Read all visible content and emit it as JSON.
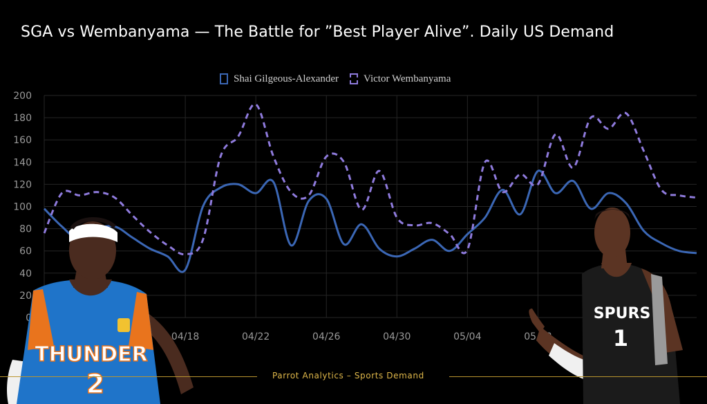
{
  "title": "SGA vs Wembanyama — The Battle for ”Best Player Alive”.   Daily US Demand",
  "footer": "Parrot Analytics – Sports Demand",
  "colors": {
    "sga": "#3b67b5",
    "wemby": "#8f7bdd",
    "background": "#000000",
    "footer_accent": "#b9952f"
  },
  "chart_data": {
    "type": "line",
    "title": "SGA vs Wembanyama — The Battle for ”Best Player Alive”.   Daily US Demand",
    "xlabel": "",
    "ylabel": "",
    "ylim": [
      0,
      200
    ],
    "yticks": [
      "200",
      "180",
      "160",
      "140",
      "120",
      "100",
      "80",
      "60",
      "40",
      "20",
      "0"
    ],
    "xticks": [
      "04/18",
      "04/22",
      "04/26",
      "04/30",
      "05/04",
      "05/08"
    ],
    "grid": true,
    "legend_position": "top-center",
    "x": [
      "04/10",
      "04/11",
      "04/12",
      "04/13",
      "04/14",
      "04/15",
      "04/16",
      "04/17",
      "04/18",
      "04/19",
      "04/20",
      "04/21",
      "04/22",
      "04/23",
      "04/24",
      "04/25",
      "04/26",
      "04/27",
      "04/28",
      "04/29",
      "04/30",
      "05/01",
      "05/02",
      "05/03",
      "05/04",
      "05/05",
      "05/06",
      "05/07",
      "05/08",
      "05/09",
      "05/10",
      "05/11",
      "05/12",
      "05/13",
      "05/14",
      "05/15",
      "05/16",
      "05/17"
    ],
    "series": [
      {
        "name": "Shai Gilgeous-Alexander",
        "style": "solid",
        "values": [
          98,
          82,
          70,
          80,
          82,
          72,
          62,
          55,
          43,
          100,
          117,
          120,
          112,
          122,
          65,
          105,
          107,
          66,
          84,
          62,
          55,
          62,
          70,
          60,
          75,
          90,
          115,
          93,
          132,
          112,
          123,
          98,
          112,
          103,
          78,
          67,
          60,
          58
        ]
      },
      {
        "name": "Victor Wembanyama",
        "style": "dashed",
        "values": [
          76,
          112,
          110,
          113,
          108,
          92,
          77,
          65,
          57,
          70,
          145,
          163,
          192,
          145,
          113,
          110,
          145,
          140,
          97,
          132,
          90,
          83,
          85,
          75,
          61,
          140,
          113,
          129,
          120,
          165,
          135,
          180,
          170,
          184,
          150,
          115,
          110,
          108
        ]
      }
    ]
  },
  "icons": {
    "left_player": "sga-player-photo",
    "right_player": "wembanyama-player-photo"
  }
}
